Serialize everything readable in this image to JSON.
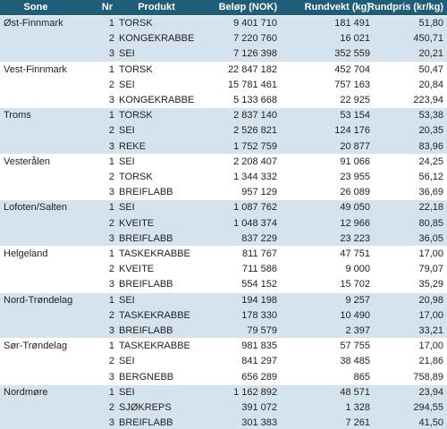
{
  "table": {
    "header": [
      "Sone",
      "Nr",
      "Produkt",
      "Beløp (NOK)",
      "Rundvekt (kg)",
      "Rundpris (kr/kg)"
    ],
    "groups": [
      {
        "sone": "Øst-Finnmark",
        "rows": [
          [
            "1",
            "TORSK",
            "9 401 710",
            "181 491",
            "51,80"
          ],
          [
            "2",
            "KONGEKRABBE",
            "7 220 760",
            "16 021",
            "450,71"
          ],
          [
            "3",
            "SEI",
            "7 126 398",
            "352 559",
            "20,21"
          ]
        ]
      },
      {
        "sone": "Vest-Finnmark",
        "rows": [
          [
            "1",
            "TORSK",
            "22 847 182",
            "452 704",
            "50,47"
          ],
          [
            "2",
            "SEI",
            "15 781 461",
            "757 163",
            "20,84"
          ],
          [
            "3",
            "KONGEKRABBE",
            "5 133 668",
            "22 925",
            "223,94"
          ]
        ]
      },
      {
        "sone": "Troms",
        "rows": [
          [
            "1",
            "TORSK",
            "2 837 140",
            "53 154",
            "53,38"
          ],
          [
            "2",
            "SEI",
            "2 526 821",
            "124 176",
            "20,35"
          ],
          [
            "3",
            "REKE",
            "1 752 759",
            "20 877",
            "83,96"
          ]
        ]
      },
      {
        "sone": "Vesterålen",
        "rows": [
          [
            "1",
            "SEI",
            "2 208 407",
            "91 066",
            "24,25"
          ],
          [
            "2",
            "TORSK",
            "1 344 332",
            "23 955",
            "56,12"
          ],
          [
            "3",
            "BREIFLABB",
            "957 129",
            "26 089",
            "36,69"
          ]
        ]
      },
      {
        "sone": "Lofoten/Salten",
        "rows": [
          [
            "1",
            "SEI",
            "1 087 762",
            "49 050",
            "22,18"
          ],
          [
            "2",
            "KVEITE",
            "1 048 374",
            "12 966",
            "80,85"
          ],
          [
            "3",
            "BREIFLABB",
            "837 229",
            "23 223",
            "36,05"
          ]
        ]
      },
      {
        "sone": "Helgeland",
        "rows": [
          [
            "1",
            "TASKEKRABBE",
            "811 767",
            "47 751",
            "17,00"
          ],
          [
            "2",
            "KVEITE",
            "711 586",
            "9 000",
            "79,07"
          ],
          [
            "3",
            "BREIFLABB",
            "554 152",
            "15 702",
            "35,29"
          ]
        ]
      },
      {
        "sone": "Nord-Trøndelag",
        "rows": [
          [
            "1",
            "SEI",
            "194 198",
            "9 257",
            "20,98"
          ],
          [
            "2",
            "TASKEKRABBE",
            "178 330",
            "10 490",
            "17,00"
          ],
          [
            "3",
            "BREIFLABB",
            "79 579",
            "2 397",
            "33,21"
          ]
        ]
      },
      {
        "sone": "Sør-Trøndelag",
        "rows": [
          [
            "1",
            "TASKEKRABBE",
            "981 835",
            "57 755",
            "17,00"
          ],
          [
            "2",
            "SEI",
            "841 297",
            "38 485",
            "21,86"
          ],
          [
            "3",
            "BERGNEBB",
            "656 289",
            "865",
            "758,89"
          ]
        ]
      },
      {
        "sone": "Nordmøre",
        "rows": [
          [
            "1",
            "SEI",
            "1 162 892",
            "48 571",
            "23,94"
          ],
          [
            "2",
            "SJØKREPS",
            "391 072",
            "1 328",
            "294,55"
          ],
          [
            "3",
            "BREIFLABB",
            "301 383",
            "7 261",
            "41,50"
          ]
        ]
      }
    ]
  }
}
